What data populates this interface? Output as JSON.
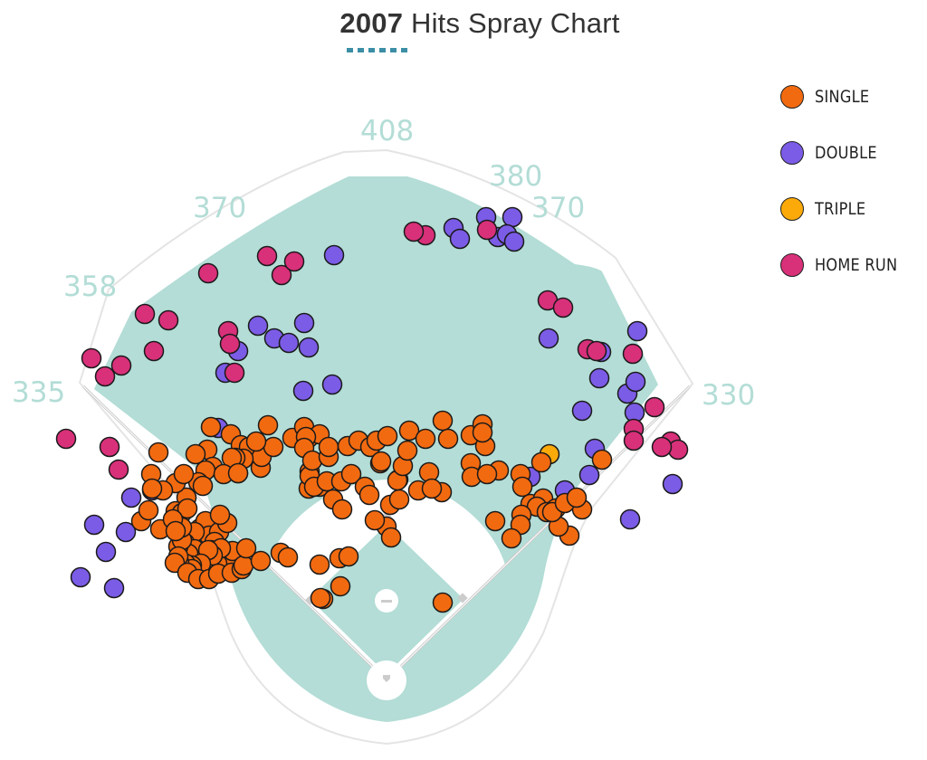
{
  "title": {
    "year": "2007",
    "rest": " Hits Spray Chart"
  },
  "fence_distances": {
    "lf_line": "335",
    "lf": "358",
    "lcf": "370",
    "cf": "408",
    "rcf": "380",
    "rcf2": "370",
    "rf_line": "330"
  },
  "legend": [
    {
      "key": "single",
      "label": "SINGLE",
      "color": "#f26a10"
    },
    {
      "key": "double",
      "label": "DOUBLE",
      "color": "#7b5ce6"
    },
    {
      "key": "triple",
      "label": "TRIPLE",
      "color": "#fcaa0a"
    },
    {
      "key": "home_run",
      "label": "HOME RUN",
      "color": "#d9307a"
    }
  ],
  "colors": {
    "field": "#b3ddd6",
    "infield_dirt": "#ffffff",
    "foul_line": "#cccccc",
    "title_underline": "#3b8ea5"
  },
  "chart_data": {
    "type": "scatter",
    "title": "2007 Hits Spray Chart",
    "legend_position": "right",
    "hits": [
      {
        "x": -338,
        "y": 114,
        "type": "double"
      },
      {
        "x": -301,
        "y": 102,
        "type": "double"
      },
      {
        "x": -323,
        "y": 172,
        "type": "double"
      },
      {
        "x": -310,
        "y": 142,
        "type": "double"
      },
      {
        "x": -288,
        "y": 164,
        "type": "double"
      },
      {
        "x": -282,
        "y": 202,
        "type": "double"
      },
      {
        "x": -259,
        "y": 210,
        "type": "double"
      },
      {
        "x": -186,
        "y": 279,
        "type": "double"
      },
      {
        "x": -178,
        "y": 340,
        "type": "double"
      },
      {
        "x": -164,
        "y": 364,
        "type": "double"
      },
      {
        "x": -142,
        "y": 392,
        "type": "double"
      },
      {
        "x": -124,
        "y": 378,
        "type": "double"
      },
      {
        "x": -91,
        "y": 395,
        "type": "double"
      },
      {
        "x": -108,
        "y": 373,
        "type": "double"
      },
      {
        "x": -92,
        "y": 320,
        "type": "double"
      },
      {
        "x": -86,
        "y": 368,
        "type": "double"
      },
      {
        "x": -58,
        "y": 470,
        "type": "double"
      },
      {
        "x": -60,
        "y": 327,
        "type": "double"
      },
      {
        "x": 74,
        "y": 500,
        "type": "double"
      },
      {
        "x": 81,
        "y": 488,
        "type": "double"
      },
      {
        "x": 110,
        "y": 512,
        "type": "double"
      },
      {
        "x": 123,
        "y": 490,
        "type": "double"
      },
      {
        "x": 139,
        "y": 512,
        "type": "double"
      },
      {
        "x": 133,
        "y": 493,
        "type": "double"
      },
      {
        "x": 141,
        "y": 485,
        "type": "double"
      },
      {
        "x": 179,
        "y": 378,
        "type": "double"
      },
      {
        "x": 237,
        "y": 363,
        "type": "double"
      },
      {
        "x": 277,
        "y": 386,
        "type": "double"
      },
      {
        "x": 235,
        "y": 334,
        "type": "double"
      },
      {
        "x": 197,
        "y": 210,
        "type": "double"
      },
      {
        "x": 224,
        "y": 227,
        "type": "double"
      },
      {
        "x": 230,
        "y": 256,
        "type": "double"
      },
      {
        "x": 266,
        "y": 317,
        "type": "double"
      },
      {
        "x": 275,
        "y": 330,
        "type": "double"
      },
      {
        "x": 274,
        "y": 296,
        "type": "double"
      },
      {
        "x": 216,
        "y": 298,
        "type": "double"
      },
      {
        "x": 159,
        "y": 225,
        "type": "double"
      },
      {
        "x": 269,
        "y": 178,
        "type": "double"
      },
      {
        "x": 316,
        "y": 217,
        "type": "double"
      },
      {
        "x": -354,
        "y": 267,
        "type": "home_run"
      },
      {
        "x": -296,
        "y": 233,
        "type": "home_run"
      },
      {
        "x": -326,
        "y": 356,
        "type": "home_run"
      },
      {
        "x": -311,
        "y": 336,
        "type": "home_run"
      },
      {
        "x": -293,
        "y": 348,
        "type": "home_run"
      },
      {
        "x": -306,
        "y": 258,
        "type": "home_run"
      },
      {
        "x": -267,
        "y": 405,
        "type": "home_run"
      },
      {
        "x": -257,
        "y": 364,
        "type": "home_run"
      },
      {
        "x": -241,
        "y": 398,
        "type": "home_run"
      },
      {
        "x": -175,
        "y": 386,
        "type": "home_run"
      },
      {
        "x": -197,
        "y": 450,
        "type": "home_run"
      },
      {
        "x": -168,
        "y": 340,
        "type": "home_run"
      },
      {
        "x": -116,
        "y": 448,
        "type": "home_run"
      },
      {
        "x": -173,
        "y": 372,
        "type": "home_run"
      },
      {
        "x": -132,
        "y": 469,
        "type": "home_run"
      },
      {
        "x": -102,
        "y": 463,
        "type": "home_run"
      },
      {
        "x": 43,
        "y": 492,
        "type": "home_run"
      },
      {
        "x": 30,
        "y": 496,
        "type": "home_run"
      },
      {
        "x": 111,
        "y": 498,
        "type": "home_run"
      },
      {
        "x": 178,
        "y": 420,
        "type": "home_run"
      },
      {
        "x": 195,
        "y": 412,
        "type": "home_run"
      },
      {
        "x": 222,
        "y": 366,
        "type": "home_run"
      },
      {
        "x": 232,
        "y": 364,
        "type": "home_run"
      },
      {
        "x": 272,
        "y": 361,
        "type": "home_run"
      },
      {
        "x": 296,
        "y": 302,
        "type": "home_run"
      },
      {
        "x": 273,
        "y": 278,
        "type": "home_run"
      },
      {
        "x": 273,
        "y": 265,
        "type": "home_run"
      },
      {
        "x": 314,
        "y": 264,
        "type": "home_run"
      },
      {
        "x": 322,
        "y": 255,
        "type": "home_run"
      },
      {
        "x": 304,
        "y": 258,
        "type": "home_run"
      },
      {
        "x": 180,
        "y": 250,
        "type": "triple"
      },
      {
        "x": 0,
        "y": 170,
        "type": "single"
      },
      {
        "x": 5,
        "y": 158,
        "type": "single"
      },
      {
        "x": -52,
        "y": 135,
        "type": "single"
      },
      {
        "x": -42,
        "y": 137,
        "type": "single"
      },
      {
        "x": -51,
        "y": 104,
        "type": "single"
      },
      {
        "x": -74,
        "y": 128,
        "type": "single"
      },
      {
        "x": -70,
        "y": 90,
        "type": "single"
      },
      {
        "x": -73,
        "y": 91,
        "type": "single"
      },
      {
        "x": 62,
        "y": 86,
        "type": "single"
      },
      {
        "x": 124,
        "y": 232,
        "type": "single"
      },
      {
        "x": -85,
        "y": 231,
        "type": "single"
      },
      {
        "x": -86,
        "y": 212,
        "type": "single"
      },
      {
        "x": -85,
        "y": 226,
        "type": "single"
      },
      {
        "x": -74,
        "y": 214,
        "type": "single"
      },
      {
        "x": -80,
        "y": 214,
        "type": "single"
      },
      {
        "x": -66,
        "y": 220,
        "type": "single"
      },
      {
        "x": -50,
        "y": 220,
        "type": "single"
      },
      {
        "x": -39,
        "y": 228,
        "type": "single"
      },
      {
        "x": -24,
        "y": 214,
        "type": "single"
      },
      {
        "x": -59,
        "y": 200,
        "type": "single"
      },
      {
        "x": -49,
        "y": 189,
        "type": "single"
      },
      {
        "x": -19,
        "y": 205,
        "type": "single"
      },
      {
        "x": -13,
        "y": 177,
        "type": "single"
      },
      {
        "x": 4,
        "y": 194,
        "type": "single"
      },
      {
        "x": 13,
        "y": 222,
        "type": "single"
      },
      {
        "x": 14,
        "y": 200,
        "type": "single"
      },
      {
        "x": 35,
        "y": 210,
        "type": "single"
      },
      {
        "x": 47,
        "y": 230,
        "type": "single"
      },
      {
        "x": 61,
        "y": 208,
        "type": "single"
      },
      {
        "x": 50,
        "y": 212,
        "type": "single"
      },
      {
        "x": 12,
        "y": 221,
        "type": "single"
      },
      {
        "x": -7,
        "y": 240,
        "type": "single"
      },
      {
        "x": -194,
        "y": 280,
        "type": "single"
      },
      {
        "x": -172,
        "y": 272,
        "type": "single"
      },
      {
        "x": -198,
        "y": 255,
        "type": "single"
      },
      {
        "x": -161,
        "y": 260,
        "type": "single"
      },
      {
        "x": -152,
        "y": 258,
        "type": "single"
      },
      {
        "x": -164,
        "y": 229,
        "type": "single"
      },
      {
        "x": -139,
        "y": 235,
        "type": "single"
      },
      {
        "x": -138,
        "y": 247,
        "type": "single"
      },
      {
        "x": -125,
        "y": 258,
        "type": "single"
      },
      {
        "x": -104,
        "y": 268,
        "type": "single"
      },
      {
        "x": -144,
        "y": 264,
        "type": "single"
      },
      {
        "x": -158,
        "y": 245,
        "type": "single"
      },
      {
        "x": -167,
        "y": 246,
        "type": "single"
      },
      {
        "x": -171,
        "y": 246,
        "type": "single"
      },
      {
        "x": -192,
        "y": 236,
        "type": "single"
      },
      {
        "x": -211,
        "y": 250,
        "type": "single"
      },
      {
        "x": -200,
        "y": 232,
        "type": "single"
      },
      {
        "x": -180,
        "y": 228,
        "type": "single"
      },
      {
        "x": -164,
        "y": 229,
        "type": "single"
      },
      {
        "x": -208,
        "y": 219,
        "type": "single"
      },
      {
        "x": -203,
        "y": 215,
        "type": "single"
      },
      {
        "x": -221,
        "y": 202,
        "type": "single"
      },
      {
        "x": -233,
        "y": 218,
        "type": "single"
      },
      {
        "x": -224,
        "y": 228,
        "type": "single"
      },
      {
        "x": -131,
        "y": 282,
        "type": "single"
      },
      {
        "x": -91,
        "y": 280,
        "type": "single"
      },
      {
        "x": -86,
        "y": 268,
        "type": "single"
      },
      {
        "x": -74,
        "y": 272,
        "type": "single"
      },
      {
        "x": -89,
        "y": 269,
        "type": "single"
      },
      {
        "x": -91,
        "y": 257,
        "type": "single"
      },
      {
        "x": -82,
        "y": 243,
        "type": "single"
      },
      {
        "x": -64,
        "y": 247,
        "type": "single"
      },
      {
        "x": -64,
        "y": 258,
        "type": "single"
      },
      {
        "x": -43,
        "y": 259,
        "type": "single"
      },
      {
        "x": -31,
        "y": 265,
        "type": "single"
      },
      {
        "x": -18,
        "y": 258,
        "type": "single"
      },
      {
        "x": -11,
        "y": 265,
        "type": "single"
      },
      {
        "x": 1,
        "y": 270,
        "type": "single"
      },
      {
        "x": -6,
        "y": 242,
        "type": "single"
      },
      {
        "x": 18,
        "y": 237,
        "type": "single"
      },
      {
        "x": 23,
        "y": 254,
        "type": "single"
      },
      {
        "x": 25,
        "y": 276,
        "type": "single"
      },
      {
        "x": 43,
        "y": 267,
        "type": "single"
      },
      {
        "x": 62,
        "y": 287,
        "type": "single"
      },
      {
        "x": 68,
        "y": 267,
        "type": "single"
      },
      {
        "x": 93,
        "y": 271,
        "type": "single"
      },
      {
        "x": 106,
        "y": 283,
        "type": "single"
      },
      {
        "x": 109,
        "y": 259,
        "type": "single"
      },
      {
        "x": 106,
        "y": 274,
        "type": "single"
      },
      {
        "x": 93,
        "y": 240,
        "type": "single"
      },
      {
        "x": 94,
        "y": 225,
        "type": "single"
      },
      {
        "x": 111,
        "y": 228,
        "type": "single"
      },
      {
        "x": 148,
        "y": 228,
        "type": "single"
      },
      {
        "x": 171,
        "y": 241,
        "type": "single"
      },
      {
        "x": 150,
        "y": 214,
        "type": "single"
      },
      {
        "x": 159,
        "y": 195,
        "type": "single"
      },
      {
        "x": 173,
        "y": 201,
        "type": "single"
      },
      {
        "x": 166,
        "y": 192,
        "type": "single"
      },
      {
        "x": 177,
        "y": 186,
        "type": "single"
      },
      {
        "x": 187,
        "y": 190,
        "type": "single"
      },
      {
        "x": 202,
        "y": 160,
        "type": "single"
      },
      {
        "x": 190,
        "y": 170,
        "type": "single"
      },
      {
        "x": 216,
        "y": 189,
        "type": "single"
      },
      {
        "x": 183,
        "y": 186,
        "type": "single"
      },
      {
        "x": 197,
        "y": 196,
        "type": "single"
      },
      {
        "x": 210,
        "y": 202,
        "type": "single"
      },
      {
        "x": 149,
        "y": 183,
        "type": "single"
      },
      {
        "x": 148,
        "y": 172,
        "type": "single"
      },
      {
        "x": 138,
        "y": 157,
        "type": "single"
      },
      {
        "x": 120,
        "y": 176,
        "type": "single"
      },
      {
        "x": 238,
        "y": 244,
        "type": "single"
      },
      {
        "x": -271,
        "y": 176,
        "type": "single"
      },
      {
        "x": -250,
        "y": 167,
        "type": "single"
      },
      {
        "x": -263,
        "y": 188,
        "type": "single"
      },
      {
        "x": -247,
        "y": 210,
        "type": "single"
      },
      {
        "x": -252,
        "y": 252,
        "type": "single"
      },
      {
        "x": -260,
        "y": 228,
        "type": "single"
      },
      {
        "x": -259,
        "y": 212,
        "type": "single"
      },
      {
        "x": -233,
        "y": 187,
        "type": "single"
      },
      {
        "x": -226,
        "y": 185,
        "type": "single"
      },
      {
        "x": -220,
        "y": 190,
        "type": "single"
      },
      {
        "x": -206,
        "y": 168,
        "type": "single"
      },
      {
        "x": -200,
        "y": 176,
        "type": "single"
      },
      {
        "x": -196,
        "y": 160,
        "type": "single"
      },
      {
        "x": -185,
        "y": 164,
        "type": "single"
      },
      {
        "x": -176,
        "y": 174,
        "type": "single"
      },
      {
        "x": -184,
        "y": 183,
        "type": "single"
      },
      {
        "x": -212,
        "y": 164,
        "type": "single"
      },
      {
        "x": -175,
        "y": 137,
        "type": "single"
      },
      {
        "x": -190,
        "y": 153,
        "type": "single"
      },
      {
        "x": -223,
        "y": 152,
        "type": "single"
      },
      {
        "x": -212,
        "y": 145,
        "type": "single"
      },
      {
        "x": -219,
        "y": 140,
        "type": "single"
      },
      {
        "x": -230,
        "y": 148,
        "type": "single"
      },
      {
        "x": -226,
        "y": 155,
        "type": "single"
      },
      {
        "x": -226,
        "y": 169,
        "type": "single"
      },
      {
        "x": -236,
        "y": 178,
        "type": "single"
      },
      {
        "x": -233,
        "y": 165,
        "type": "single"
      },
      {
        "x": -194,
        "y": 144,
        "type": "single"
      },
      {
        "x": -187,
        "y": 129,
        "type": "single"
      },
      {
        "x": -170,
        "y": 143,
        "type": "single"
      },
      {
        "x": -183,
        "y": 146,
        "type": "single"
      },
      {
        "x": -192,
        "y": 138,
        "type": "single"
      },
      {
        "x": -197,
        "y": 144,
        "type": "single"
      },
      {
        "x": -205,
        "y": 129,
        "type": "single"
      },
      {
        "x": -215,
        "y": 127,
        "type": "single"
      },
      {
        "x": -222,
        "y": 129,
        "type": "single"
      },
      {
        "x": -215,
        "y": 123,
        "type": "single"
      },
      {
        "x": -229,
        "y": 130,
        "type": "single"
      },
      {
        "x": -230,
        "y": 137,
        "type": "single"
      },
      {
        "x": -234,
        "y": 130,
        "type": "single"
      },
      {
        "x": -220,
        "y": 119,
        "type": "single"
      },
      {
        "x": -208,
        "y": 112,
        "type": "single"
      },
      {
        "x": -196,
        "y": 112,
        "type": "single"
      },
      {
        "x": -186,
        "y": 118,
        "type": "single"
      },
      {
        "x": -171,
        "y": 119,
        "type": "single"
      },
      {
        "x": -160,
        "y": 123,
        "type": "single"
      },
      {
        "x": -158,
        "y": 127,
        "type": "single"
      },
      {
        "x": -155,
        "y": 146,
        "type": "single"
      },
      {
        "x": -139,
        "y": 132,
        "type": "single"
      },
      {
        "x": -117,
        "y": 141,
        "type": "single"
      },
      {
        "x": -109,
        "y": 136,
        "type": "single"
      }
    ]
  }
}
